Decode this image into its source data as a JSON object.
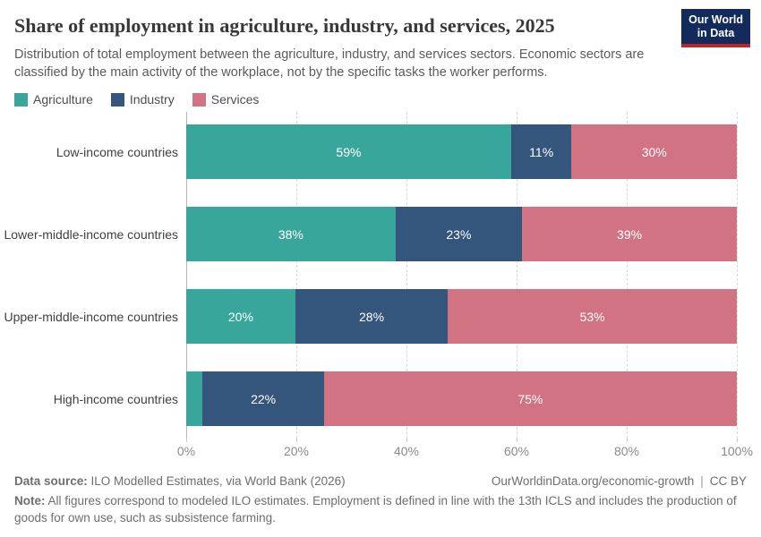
{
  "header": {
    "title": "Share of employment in agriculture, industry, and services, 2025",
    "subtitle": "Distribution of total employment between the agriculture, industry, and services sectors. Economic sectors are classified by the main activity of the workplace, not by the specific tasks the worker performs.",
    "logo": {
      "line1": "Our World",
      "line2": "in Data"
    }
  },
  "legend": {
    "items": [
      {
        "label": "Agriculture",
        "color": "#38a69b"
      },
      {
        "label": "Industry",
        "color": "#34557c"
      },
      {
        "label": "Services",
        "color": "#d27383"
      }
    ]
  },
  "chart_data": {
    "type": "bar",
    "stacked": true,
    "orientation": "horizontal",
    "title": "Share of employment in agriculture, industry, and services, 2025",
    "categories": [
      "Low-income countries",
      "Lower-middle-income countries",
      "Upper-middle-income countries",
      "High-income countries"
    ],
    "series": [
      {
        "name": "Agriculture",
        "color": "#38a69b",
        "values": [
          59,
          38,
          20,
          3
        ],
        "labels": [
          "59%",
          "38%",
          "20%",
          ""
        ]
      },
      {
        "name": "Industry",
        "color": "#34557c",
        "values": [
          11,
          23,
          28,
          22
        ],
        "labels": [
          "11%",
          "23%",
          "28%",
          "22%"
        ]
      },
      {
        "name": "Services",
        "color": "#d27383",
        "values": [
          30,
          39,
          53,
          75
        ],
        "labels": [
          "30%",
          "39%",
          "53%",
          "75%"
        ]
      }
    ],
    "xlabel": "",
    "ylabel": "",
    "xlim": [
      0,
      100
    ],
    "x_ticks": [
      "0%",
      "20%",
      "40%",
      "60%",
      "80%",
      "100%"
    ],
    "x_tick_positions": [
      0,
      20,
      40,
      60,
      80,
      100
    ],
    "grid": "vertical-dashed",
    "legend_position": "top"
  },
  "footer": {
    "source_label": "Data source:",
    "source_text": " ILO Modelled Estimates, via World Bank (2026)",
    "link": "OurWorldinData.org/economic-growth",
    "separator": "|",
    "license": "CC BY",
    "note_label": "Note:",
    "note_text": " All figures correspond to modeled ILO estimates. Employment is defined in line with the 13th ICLS and includes the production of goods for own use, such as subsistence farming."
  }
}
